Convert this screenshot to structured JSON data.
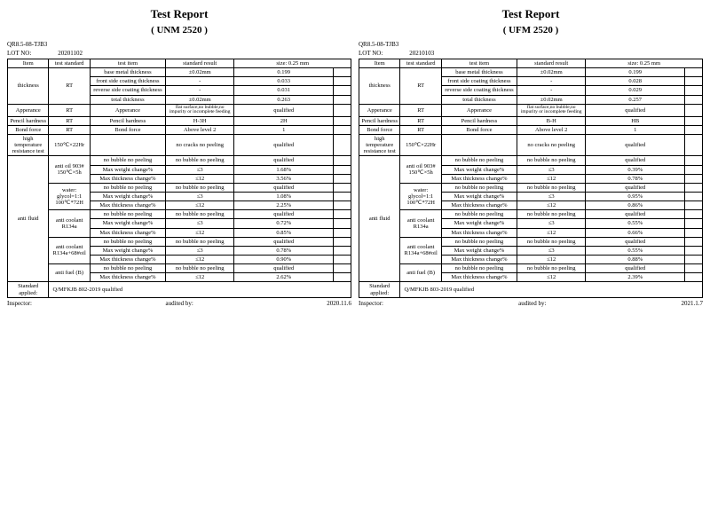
{
  "reports": [
    {
      "title": "Test Report",
      "model": "( UNM 2520 )",
      "doc_no": "QR8.5-08-TJB3",
      "lot_label": "LOT NO:",
      "lot": "20201102",
      "headers": [
        "Item",
        "test standard",
        "test item",
        "standard result",
        "size: 0.25 mm",
        ""
      ],
      "thickness": {
        "item": "thickness",
        "std": "RT",
        "rows": [
          [
            "base metal thickness",
            "±0.02mm",
            "0.199",
            ""
          ],
          [
            "front side coating thickness",
            "-",
            "0.033",
            ""
          ],
          [
            "reverse side coating thickness",
            "-",
            "0.031",
            ""
          ],
          [
            "total thickness",
            "±0.02mm",
            "0.263",
            ""
          ]
        ]
      },
      "appearance": {
        "item": "Apperance",
        "std": "RT",
        "test": "Apperance",
        "res": "flat surface,no bubble,no impurity or incomplete feeding",
        "val": "qualified"
      },
      "pencil": {
        "item": "Pencil hardness",
        "std": "RT",
        "test": "Pencil hardness",
        "res": "H-3H",
        "val": "2H"
      },
      "bond": {
        "item": "Bond force",
        "std": "RT",
        "test": "Bond force",
        "res": "Above level 2",
        "val": "1"
      },
      "hightemp": {
        "item": "high temperature resistance test",
        "std": "150℃×22Hr",
        "test": "",
        "res": "no cracks no peeling",
        "val": "qualified"
      },
      "antifluid": {
        "item": "anti fluid",
        "groups": [
          {
            "std": "anti oil 903# 150℃×5h",
            "rows": [
              [
                "no bubble no peeling",
                "no bubble no peeling",
                "qualified",
                ""
              ],
              [
                "Max weight change%",
                "≤3",
                "1.68%",
                ""
              ],
              [
                "Max thickness change%",
                "≤12",
                "3.56%",
                ""
              ]
            ]
          },
          {
            "std": "water: glycol=1:1 100℃*72H",
            "rows": [
              [
                "no bubble no peeling",
                "no bubble no peeling",
                "qualified",
                ""
              ],
              [
                "Max weight change%",
                "≤3",
                "1.08%",
                ""
              ],
              [
                "Max thickness change%",
                "≤12",
                "2.25%",
                ""
              ]
            ]
          },
          {
            "std": "anti coolant R134a",
            "rows": [
              [
                "no bubble no peeling",
                "no bubble no peeling",
                "qualified",
                ""
              ],
              [
                "Max weight change%",
                "≤3",
                "0.72%",
                ""
              ],
              [
                "Max thickness change%",
                "≤12",
                "0.85%",
                ""
              ]
            ]
          },
          {
            "std": "anti coolant R134a+68#oil",
            "rows": [
              [
                "no bubble no peeling",
                "no bubble no peeling",
                "qualified",
                ""
              ],
              [
                "Max weight change%",
                "≤3",
                "0.78%",
                ""
              ],
              [
                "Max thickness change%",
                "≤12",
                "0.90%",
                ""
              ]
            ]
          },
          {
            "std": "anti fuel (B)",
            "rows": [
              [
                "no bubble no peeling",
                "no bubble no peeling",
                "qualified",
                ""
              ],
              [
                "Max thickness change%",
                "≤12",
                "2.62%",
                ""
              ]
            ]
          }
        ]
      },
      "std_applied": {
        "label": "Standard applied:",
        "val": "Q/MFKJB 802-2019 qualified"
      },
      "footer": {
        "inspector": "Inspector:",
        "audited": "audited by:",
        "date": "2020.11.6"
      }
    },
    {
      "title": "Test Report",
      "model": "( UFM 2520 )",
      "doc_no": "QR8.5-08-TJB3",
      "lot_label": "LOT NO:",
      "lot": "20210103",
      "headers": [
        "Item",
        "test standard",
        "test item",
        "standard result",
        "size: 0.25 mm",
        ""
      ],
      "thickness": {
        "item": "thickness",
        "std": "RT",
        "rows": [
          [
            "base metal thickness",
            "±0.02mm",
            "0.199",
            ""
          ],
          [
            "front side coating thickness",
            "-",
            "0.028",
            ""
          ],
          [
            "reverse side coating thickness",
            "-",
            "0.029",
            ""
          ],
          [
            "total thickness",
            "±0.02mm",
            "0.257",
            ""
          ]
        ]
      },
      "appearance": {
        "item": "Apperance",
        "std": "RT",
        "test": "Apperance",
        "res": "flat surface,no bubble,no impurity or incomplete feeding",
        "val": "qualified"
      },
      "pencil": {
        "item": "Pencil hardness",
        "std": "RT",
        "test": "Pencil hardness",
        "res": "B-H",
        "val": "HB"
      },
      "bond": {
        "item": "Bond force",
        "std": "RT",
        "test": "Bond force",
        "res": "Above level 2",
        "val": "1"
      },
      "hightemp": {
        "item": "high temperature resistance test",
        "std": "150℃×22Hr",
        "test": "",
        "res": "no cracks no peeling",
        "val": "qualified"
      },
      "antifluid": {
        "item": "anti fluid",
        "groups": [
          {
            "std": "anti oil 903# 150℃×5h",
            "rows": [
              [
                "no bubble no peeling",
                "no bubble no peeling",
                "qualified",
                ""
              ],
              [
                "Max weight change%",
                "≤3",
                "0.39%",
                ""
              ],
              [
                "Max thickness change%",
                "≤12",
                "0.78%",
                ""
              ]
            ]
          },
          {
            "std": "water: glycol=1:1 100℃*72H",
            "rows": [
              [
                "no bubble no peeling",
                "no bubble no peeling",
                "qualified",
                ""
              ],
              [
                "Max weight change%",
                "≤3",
                "0.95%",
                ""
              ],
              [
                "Max thickness change%",
                "≤12",
                "0.86%",
                ""
              ]
            ]
          },
          {
            "std": "anti coolant R134a",
            "rows": [
              [
                "no bubble no peeling",
                "no bubble no peeling",
                "qualified",
                ""
              ],
              [
                "Max weight change%",
                "≤3",
                "0.55%",
                ""
              ],
              [
                "Max thickness change%",
                "≤12",
                "0.66%",
                ""
              ]
            ]
          },
          {
            "std": "anti coolant R134a+68#oil",
            "rows": [
              [
                "no bubble no peeling",
                "no bubble no peeling",
                "qualified",
                ""
              ],
              [
                "Max weight change%",
                "≤3",
                "0.55%",
                ""
              ],
              [
                "Max thickness change%",
                "≤12",
                "0.88%",
                ""
              ]
            ]
          },
          {
            "std": "anti fuel (B)",
            "rows": [
              [
                "no bubble no peeling",
                "no bubble no peeling",
                "qualified",
                ""
              ],
              [
                "Max thickness change%",
                "≤12",
                "2.39%",
                ""
              ]
            ]
          }
        ]
      },
      "std_applied": {
        "label": "Standard applied:",
        "val": "Q/MFKJB 803-2019 qualified"
      },
      "footer": {
        "inspector": "Inspector:",
        "audited": "audited by:",
        "date": "2021.1.7"
      }
    }
  ]
}
